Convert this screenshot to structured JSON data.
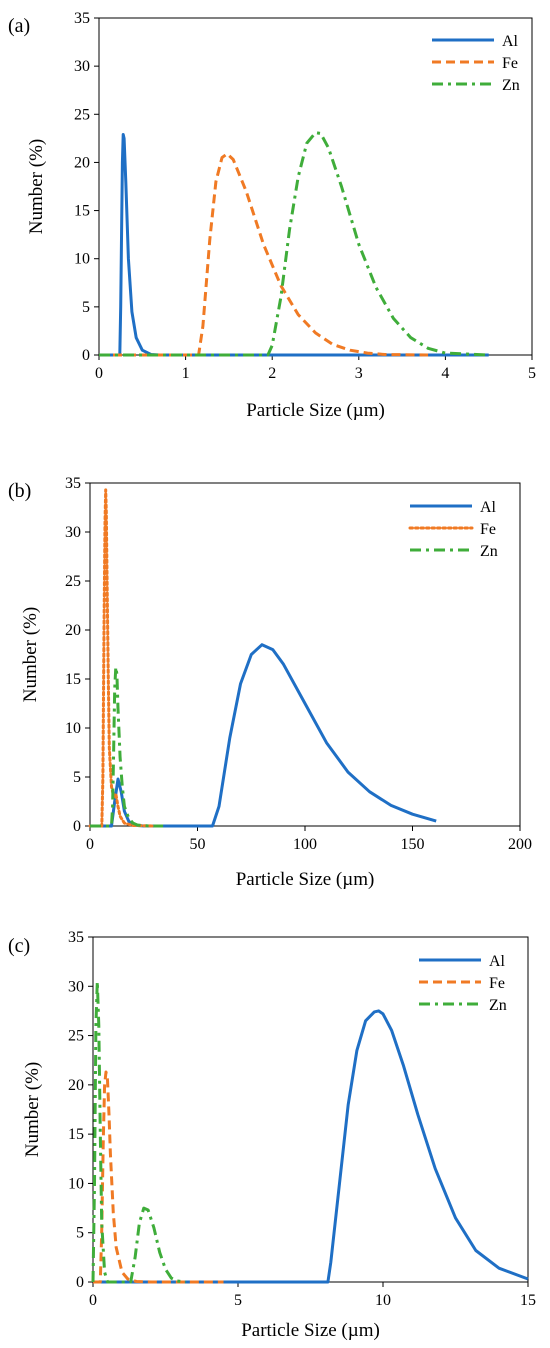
{
  "colors": {
    "Al": "#1f6fc5",
    "Fe": "#f07a24",
    "Zn": "#3fad3a"
  },
  "chart_data": [
    {
      "type": "line",
      "panel_label": "(a)",
      "xlabel": "Particle Size (µm)",
      "ylabel": "Number (%)",
      "xlim": [
        0,
        5
      ],
      "ylim": [
        0,
        35
      ],
      "xticks": [
        "0",
        "1",
        "2",
        "3",
        "4",
        "5"
      ],
      "yticks": [
        "0",
        "5",
        "10",
        "15",
        "20",
        "25",
        "30",
        "35"
      ],
      "legend_position": "top-right",
      "series": [
        {
          "name": "Al",
          "style": "solid",
          "x": [
            0,
            0.24,
            0.25,
            0.27,
            0.28,
            0.29,
            0.31,
            0.34,
            0.38,
            0.43,
            0.5,
            0.6,
            0.7,
            2,
            4.5
          ],
          "y": [
            0,
            0,
            5,
            20,
            22.9,
            22.5,
            18,
            10,
            4.5,
            1.8,
            0.5,
            0.05,
            0,
            0,
            0
          ]
        },
        {
          "name": "Fe",
          "style": "dashed",
          "x": [
            0,
            1.15,
            1.2,
            1.28,
            1.35,
            1.42,
            1.48,
            1.55,
            1.7,
            1.9,
            2.1,
            2.3,
            2.5,
            2.7,
            2.9,
            3.1,
            3.3,
            3.8
          ],
          "y": [
            0,
            0,
            3,
            12,
            18,
            20.5,
            20.9,
            20.3,
            17,
            11.5,
            7.2,
            4.2,
            2.3,
            1.1,
            0.5,
            0.2,
            0.05,
            0
          ]
        },
        {
          "name": "Zn",
          "style": "dashdot",
          "x": [
            0,
            1.95,
            2.0,
            2.1,
            2.2,
            2.3,
            2.4,
            2.5,
            2.56,
            2.65,
            2.8,
            3.0,
            3.2,
            3.4,
            3.6,
            3.8,
            4.0,
            4.5
          ],
          "y": [
            0,
            0,
            1,
            6,
            13,
            18.5,
            22,
            23.1,
            23,
            21.5,
            17.5,
            11.5,
            7,
            3.8,
            1.8,
            0.7,
            0.2,
            0
          ]
        }
      ]
    },
    {
      "type": "line",
      "panel_label": "(b)",
      "xlabel": "Particle Size (µm)",
      "ylabel": "Number (%)",
      "xlim": [
        0,
        200
      ],
      "ylim": [
        0,
        35
      ],
      "xticks": [
        "0",
        "50",
        "100",
        "150",
        "200"
      ],
      "yticks": [
        "0",
        "5",
        "10",
        "15",
        "20",
        "25",
        "30",
        "35"
      ],
      "legend_position": "top-right",
      "series": [
        {
          "name": "Al",
          "style": "solid",
          "x": [
            0,
            10,
            11.5,
            13,
            14.5,
            16,
            18,
            20,
            25,
            40,
            57,
            60,
            65,
            70,
            75,
            80,
            85,
            90,
            100,
            110,
            120,
            130,
            140,
            150,
            161
          ],
          "y": [
            0,
            0,
            2.5,
            4.8,
            3.5,
            1.5,
            0.5,
            0.1,
            0,
            0,
            0,
            2,
            9,
            14.5,
            17.5,
            18.5,
            18,
            16.5,
            12.5,
            8.5,
            5.5,
            3.5,
            2.1,
            1.2,
            0.5
          ]
        },
        {
          "name": "Fe",
          "style": "dotted",
          "x": [
            0,
            5.5,
            6,
            6.5,
            7,
            7.3,
            7.6,
            8,
            8.5,
            9,
            10,
            11,
            12,
            13,
            14,
            16,
            20,
            30
          ],
          "y": [
            0,
            0,
            5,
            20,
            31,
            34.3,
            32,
            24,
            15,
            8,
            4,
            3,
            3.3,
            2,
            1,
            0.3,
            0.05,
            0
          ]
        },
        {
          "name": "Zn",
          "style": "dashdot",
          "x": [
            0,
            10,
            10.5,
            11,
            11.5,
            12,
            12.5,
            13,
            14,
            15,
            16,
            18,
            20,
            22,
            25,
            30,
            34
          ],
          "y": [
            0,
            0,
            2,
            8,
            14,
            16.2,
            15.5,
            12,
            7,
            4,
            2,
            0.8,
            0.3,
            0.1,
            0.03,
            0,
            0
          ]
        }
      ]
    },
    {
      "type": "line",
      "panel_label": "(c)",
      "xlabel": "Particle Size (µm)",
      "ylabel": "Number (%)",
      "xlim": [
        0,
        15
      ],
      "ylim": [
        0,
        35
      ],
      "xticks": [
        "0",
        "5",
        "10",
        "15"
      ],
      "yticks": [
        "0",
        "5",
        "10",
        "15",
        "20",
        "25",
        "30",
        "35"
      ],
      "legend_position": "top-right",
      "series": [
        {
          "name": "Al",
          "style": "solid",
          "x": [
            0,
            8.1,
            8.2,
            8.5,
            8.8,
            9.1,
            9.4,
            9.7,
            9.85,
            10,
            10.3,
            10.7,
            11.2,
            11.8,
            12.5,
            13.2,
            14,
            15
          ],
          "y": [
            0,
            0,
            2,
            10,
            18,
            23.5,
            26.5,
            27.4,
            27.5,
            27.2,
            25.5,
            22,
            17,
            11.5,
            6.5,
            3.2,
            1.4,
            0.3
          ]
        },
        {
          "name": "Fe",
          "style": "dashed",
          "x": [
            0,
            0.25,
            0.3,
            0.35,
            0.4,
            0.45,
            0.5,
            0.55,
            0.6,
            0.7,
            0.8,
            1.0,
            1.2,
            1.5,
            2,
            3,
            4.5
          ],
          "y": [
            0,
            0,
            5,
            14,
            20,
            21.3,
            20.5,
            17,
            13,
            7,
            3.5,
            1,
            0.3,
            0.05,
            0,
            0,
            0
          ]
        },
        {
          "name": "Zn",
          "style": "dashdot",
          "x": [
            0,
            0.05,
            0.1,
            0.15,
            0.2,
            0.25,
            0.3,
            0.4,
            0.5,
            1.3,
            1.45,
            1.6,
            1.75,
            1.9,
            2.1,
            2.3,
            2.5,
            2.7,
            2.9,
            3.2
          ],
          "y": [
            0,
            10,
            26,
            30.5,
            26,
            15,
            6,
            1,
            0,
            0,
            2.5,
            6,
            7.5,
            7.3,
            5.5,
            3,
            1.3,
            0.4,
            0.1,
            0
          ]
        }
      ]
    }
  ]
}
